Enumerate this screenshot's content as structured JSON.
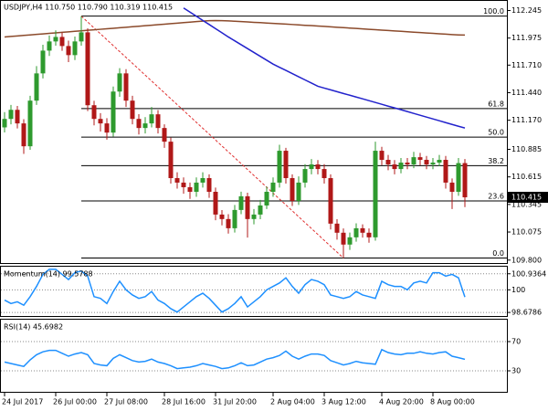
{
  "chart_data": [
    {
      "type": "candlestick",
      "title": "USDJPY,H4  110.750 110.790 110.319 110.415",
      "categories": [
        "24 Jul 2017",
        null,
        null,
        null,
        null,
        null,
        null,
        null,
        "26 Jul 00:00",
        null,
        null,
        null,
        null,
        null,
        null,
        null,
        "27 Jul 08:00",
        null,
        null,
        null,
        null,
        null,
        null,
        null,
        null,
        "28 Jul 16:00",
        null,
        null,
        null,
        null,
        null,
        null,
        null,
        "31 Jul 20:00",
        null,
        null,
        null,
        null,
        null,
        null,
        null,
        null,
        "2 Aug 04:00",
        null,
        null,
        null,
        null,
        null,
        null,
        null,
        "3 Aug 12:00",
        null,
        null,
        null,
        null,
        null,
        null,
        null,
        null,
        "4 Aug 20:00",
        null,
        null,
        null,
        null,
        null,
        null,
        null,
        "8 Aug 00:00",
        null,
        null,
        null,
        null,
        null
      ],
      "open": [
        111.1,
        111.183,
        111.272,
        111.139,
        110.915,
        111.362,
        111.629,
        111.852,
        111.942,
        111.986,
        111.897,
        111.808,
        111.942,
        112.031,
        111.317,
        111.183,
        111.139,
        111.049,
        111.451,
        111.629,
        111.362,
        111.183,
        111.094,
        111.139,
        111.228,
        111.094,
        110.96,
        110.603,
        110.559,
        110.514,
        110.469,
        110.559,
        110.603,
        110.469,
        110.246,
        110.202,
        110.112,
        110.291,
        110.425,
        110.202,
        110.246,
        110.335,
        110.469,
        110.559,
        110.871,
        110.603,
        110.38,
        110.559,
        110.692,
        110.737,
        110.692,
        110.603,
        110.157,
        110.068,
        109.952,
        110.023,
        110.112,
        110.068,
        110.023,
        110.871,
        110.782,
        110.737,
        110.692,
        110.755,
        110.737,
        110.808,
        110.782,
        110.737,
        110.755,
        110.782,
        110.559,
        110.469,
        110.75
      ],
      "high": [
        111.25,
        111.32,
        111.31,
        111.18,
        111.41,
        111.7,
        111.91,
        112,
        112.05,
        112.03,
        111.95,
        111.99,
        112.19,
        112.07,
        111.36,
        111.24,
        111.19,
        111.5,
        111.68,
        111.67,
        111.41,
        111.23,
        111.2,
        111.3,
        111.27,
        111.13,
        111,
        110.66,
        110.61,
        110.56,
        110.61,
        110.66,
        110.64,
        110.51,
        110.29,
        110.25,
        110.34,
        110.47,
        110.46,
        110.3,
        110.39,
        110.52,
        110.61,
        110.93,
        110.9,
        110.64,
        110.62,
        110.74,
        110.79,
        110.78,
        110.74,
        110.64,
        110.2,
        110.11,
        110.07,
        110.16,
        110.15,
        110.11,
        110.96,
        110.91,
        110.83,
        110.78,
        110.8,
        110.8,
        110.86,
        110.85,
        110.82,
        110.8,
        110.83,
        110.82,
        110.6,
        110.8,
        110.79
      ],
      "low": [
        111.05,
        111.13,
        111.09,
        110.84,
        110.88,
        111.32,
        111.58,
        111.8,
        111.9,
        111.85,
        111.74,
        111.76,
        111.9,
        111.26,
        111.12,
        111.06,
        110.98,
        111.01,
        111.4,
        111.3,
        111.13,
        111.03,
        111.04,
        111.1,
        111.04,
        110.9,
        110.55,
        110.5,
        110.45,
        110.4,
        110.42,
        110.51,
        110.41,
        110.19,
        110.14,
        110.06,
        110.07,
        110.25,
        110.02,
        110.15,
        110.2,
        110.3,
        110.42,
        110.51,
        110.55,
        110.33,
        110.34,
        110.51,
        110.64,
        110.64,
        110.55,
        110.1,
        110,
        109.82,
        109.9,
        109.98,
        110.02,
        109.97,
        109.99,
        110.73,
        110.68,
        110.64,
        110.65,
        110.69,
        110.7,
        110.73,
        110.69,
        110.69,
        110.72,
        110.5,
        110.3,
        110.43,
        110.319
      ],
      "close": [
        111.183,
        111.272,
        111.139,
        110.915,
        111.362,
        111.629,
        111.852,
        111.942,
        111.986,
        111.897,
        111.808,
        111.942,
        112.031,
        111.317,
        111.183,
        111.139,
        111.049,
        111.451,
        111.629,
        111.362,
        111.183,
        111.094,
        111.139,
        111.228,
        111.094,
        110.96,
        110.603,
        110.559,
        110.514,
        110.469,
        110.559,
        110.603,
        110.469,
        110.246,
        110.202,
        110.112,
        110.291,
        110.425,
        110.202,
        110.246,
        110.335,
        110.469,
        110.559,
        110.871,
        110.603,
        110.38,
        110.559,
        110.692,
        110.737,
        110.692,
        110.603,
        110.157,
        110.068,
        109.952,
        110.023,
        110.112,
        110.068,
        110.023,
        110.871,
        110.782,
        110.737,
        110.692,
        110.755,
        110.737,
        110.808,
        110.782,
        110.737,
        110.755,
        110.782,
        110.559,
        110.469,
        110.75,
        110.415
      ],
      "up_color": "#2e9a2e",
      "down_color": "#b01818",
      "series": [
        {
          "color": "#8b4a2b",
          "values": [
            111.986,
            111.991,
            111.996,
            112.001,
            112.006,
            112.011,
            112.016,
            112.021,
            112.026,
            112.031,
            112.036,
            112.041,
            112.046,
            112.051,
            112.056,
            112.061,
            112.066,
            112.071,
            112.076,
            112.081,
            112.086,
            112.091,
            112.096,
            112.101,
            112.106,
            112.111,
            112.116,
            112.121,
            112.126,
            112.131,
            112.136,
            112.141,
            112.145,
            112.147,
            112.146,
            112.143,
            112.14,
            112.136,
            112.133,
            112.129,
            112.126,
            112.122,
            112.119,
            112.115,
            112.112,
            112.108,
            112.104,
            112.1,
            112.097,
            112.093,
            112.089,
            112.085,
            112.081,
            112.077,
            112.073,
            112.069,
            112.065,
            112.061,
            112.057,
            112.053,
            112.049,
            112.045,
            112.041,
            112.037,
            112.033,
            112.029,
            112.025,
            112.021,
            112.017,
            112.013,
            112.009,
            112.006,
            112.004
          ]
        },
        {
          "color": "#2222cc",
          "values": [
            null,
            null,
            null,
            null,
            null,
            null,
            null,
            null,
            null,
            null,
            null,
            null,
            null,
            null,
            null,
            null,
            null,
            null,
            null,
            null,
            null,
            null,
            null,
            null,
            null,
            null,
            null,
            null,
            112.27,
            112.229,
            112.189,
            112.148,
            112.108,
            112.067,
            112.027,
            111.986,
            111.948,
            111.91,
            111.872,
            111.834,
            111.796,
            111.758,
            111.72,
            111.689,
            111.658,
            111.627,
            111.596,
            111.565,
            111.534,
            111.503,
            111.485,
            111.468,
            111.45,
            111.432,
            111.415,
            111.397,
            111.38,
            111.362,
            111.344,
            111.326,
            111.308,
            111.291,
            111.273,
            111.255,
            111.237,
            111.219,
            111.201,
            111.183,
            111.165,
            111.147,
            111.129,
            111.111,
            111.094
          ]
        }
      ],
      "fibonacci": {
        "levels": [
          {
            "value": 100,
            "label": "100.0"
          },
          61.8,
          {
            "value": 50,
            "label": "50.0"
          },
          38.2,
          23.6,
          {
            "value": 0,
            "label": "0.0"
          }
        ],
        "high": 112.19,
        "low": 109.82,
        "color": "#000000"
      },
      "trendline_color": "#e03030",
      "ylim": [
        109.78,
        112.33
      ],
      "yticks": [
        112.245,
        111.975,
        {
          "value": 111.71,
          "label": "111.710"
        },
        {
          "value": 111.44,
          "label": "111.440"
        },
        {
          "value": 111.17,
          "label": "111.170"
        },
        110.885,
        110.615,
        110.345,
        110.075,
        {
          "value": 109.8,
          "label": "109.800"
        }
      ]
    },
    {
      "type": "line",
      "title": "Momentum(14) 99.5788",
      "series": [
        {
          "color": "#1e90ff",
          "values": [
            99.4,
            99.2,
            99.3,
            99.1,
            99.6,
            100.2,
            100.9,
            101.2,
            101.2,
            100.9,
            100.6,
            101.0,
            101.1,
            100.8,
            99.6,
            99.5,
            99.2,
            99.9,
            100.5,
            100.0,
            99.7,
            99.5,
            99.6,
            99.9,
            99.4,
            99.2,
            98.9,
            98.7,
            99.0,
            99.3,
            99.6,
            99.8,
            99.5,
            99.1,
            98.7,
            98.9,
            99.2,
            99.6,
            99.0,
            99.3,
            99.6,
            100.0,
            100.2,
            100.4,
            100.7,
            100.2,
            99.8,
            100.3,
            100.6,
            100.5,
            100.3,
            99.7,
            99.6,
            99.5,
            99.6,
            99.9,
            99.7,
            99.6,
            99.5,
            100.5,
            100.3,
            100.2,
            100.2,
            100.0,
            100.4,
            100.5,
            100.4,
            101.0,
            101.0,
            100.8,
            100.9,
            100.7,
            99.5788
          ]
        }
      ],
      "ylim": [
        98.47,
        101.35
      ],
      "yticks": [
        100.9364,
        100,
        98.6786
      ],
      "grid": "dotted"
    },
    {
      "type": "line",
      "title": "RSI(14) 45.6982",
      "series": [
        {
          "color": "#1e90ff",
          "values": [
            42,
            40,
            38,
            36,
            45,
            52,
            56,
            58,
            58,
            54,
            50,
            53,
            55,
            52,
            40,
            38,
            37,
            47,
            52,
            48,
            44,
            42,
            43,
            46,
            42,
            40,
            37,
            33,
            34,
            35,
            37,
            40,
            38,
            36,
            33,
            34,
            37,
            41,
            37,
            38,
            42,
            46,
            48,
            51,
            57,
            50,
            46,
            50,
            53,
            53,
            51,
            44,
            41,
            38,
            40,
            43,
            41,
            40,
            39,
            59,
            55,
            53,
            52,
            54,
            54,
            56,
            54,
            53,
            55,
            56,
            50,
            48,
            45.6982
          ]
        }
      ],
      "ylim": [
        0,
        100
      ],
      "yticks": [
        70,
        30
      ],
      "grid": "dotted"
    }
  ]
}
